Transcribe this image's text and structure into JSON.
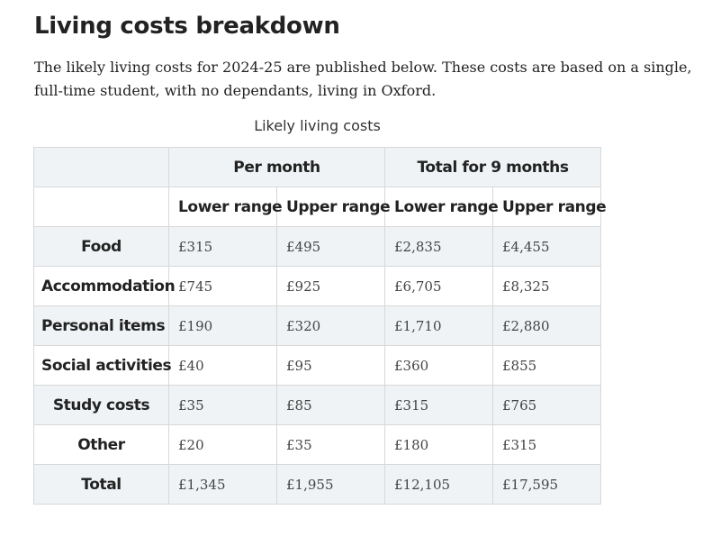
{
  "page": {
    "heading": "Living costs breakdown",
    "intro": "The likely living costs for 2024-25 are published below. These costs are based on a single, full-time student, with no dependants, living in Oxford."
  },
  "table": {
    "caption": "Likely living costs",
    "group_headers": [
      "Per month",
      "Total for 9 months"
    ],
    "sub_headers": [
      "Lower range",
      "Upper range",
      "Lower range",
      "Upper range"
    ],
    "rows": [
      {
        "label": "Food",
        "values": [
          "£315",
          "£495",
          "£2,835",
          "£4,455"
        ]
      },
      {
        "label": "Accommodation",
        "values": [
          "£745",
          "£925",
          "£6,705",
          "£8,325"
        ]
      },
      {
        "label": "Personal items",
        "values": [
          "£190",
          "£320",
          "£1,710",
          "£2,880"
        ]
      },
      {
        "label": "Social activities",
        "values": [
          "£40",
          "£95",
          "£360",
          "£855"
        ]
      },
      {
        "label": "Study costs",
        "values": [
          "£35",
          "£85",
          "£315",
          "£765"
        ]
      },
      {
        "label": "Other",
        "values": [
          "£20",
          "£35",
          "£180",
          "£315"
        ]
      },
      {
        "label": "Total",
        "values": [
          "£1,345",
          "£1,955",
          "£12,105",
          "£17,595"
        ]
      }
    ]
  },
  "colors": {
    "shaded_row": "#eff3f5",
    "border": "#d8d8d8",
    "text": "#222222"
  }
}
